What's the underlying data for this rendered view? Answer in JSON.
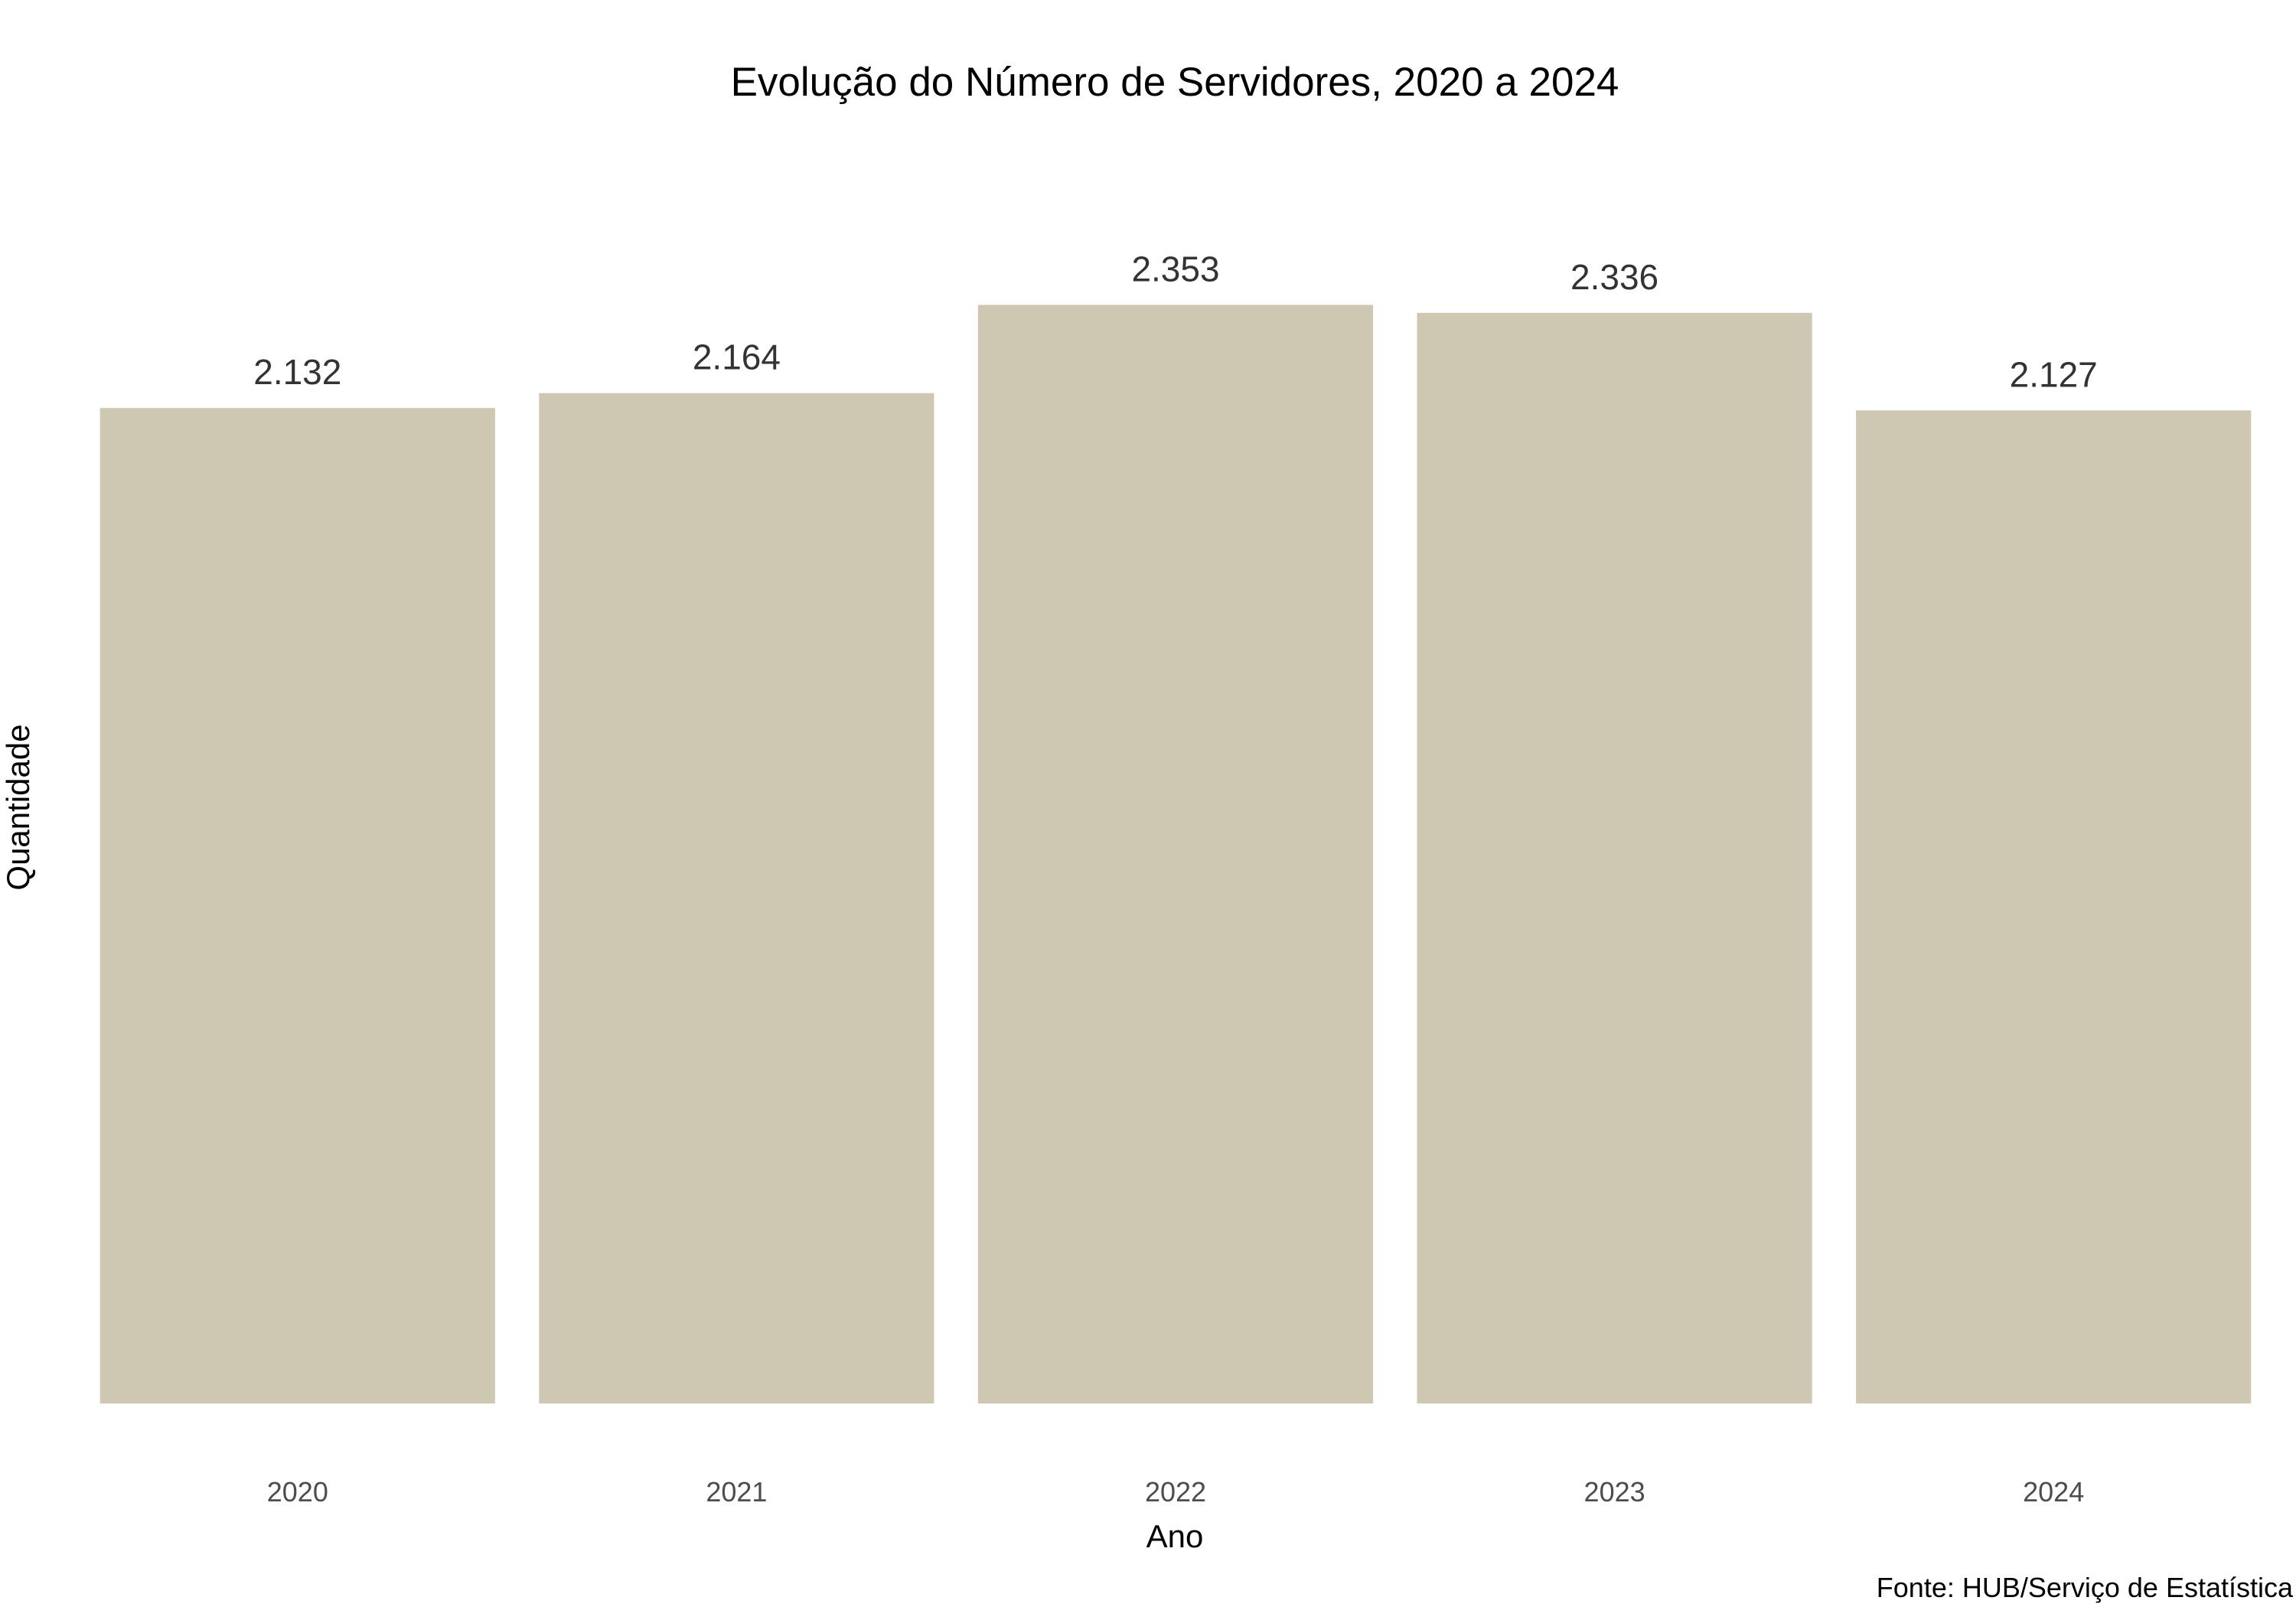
{
  "chart_data": {
    "type": "bar",
    "title": "Evolução do Número de Servidores, 2020 a 2024",
    "xlabel": "Ano",
    "ylabel": "Quantidade",
    "caption": "Fonte: HUB/Serviço de Estatística",
    "categories": [
      "2020",
      "2021",
      "2022",
      "2023",
      "2024"
    ],
    "values": [
      2132,
      2164,
      2353,
      2336,
      2127
    ],
    "value_labels": [
      "2.132",
      "2.164",
      "2.353",
      "2.336",
      "2.127"
    ],
    "ylim": [
      0,
      2470
    ],
    "grid": false,
    "legend": "none",
    "bar_color": "#cec8b2"
  }
}
